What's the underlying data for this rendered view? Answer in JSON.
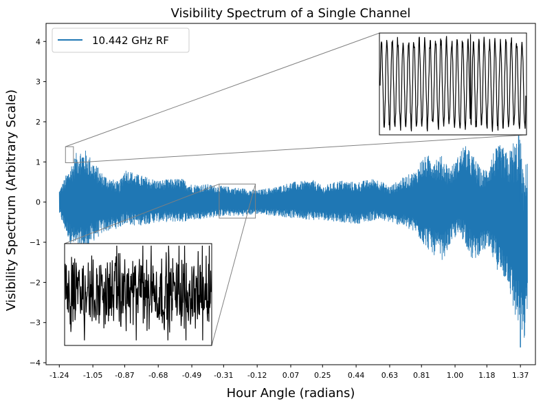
{
  "chart_data": {
    "type": "line",
    "title": "Visibility Spectrum of a Single Channel",
    "xlabel": "Hour Angle (radians)",
    "ylabel": "Visibility Spectrum (Arbitrary Scale)",
    "xlim": [
      -1.315,
      1.455
    ],
    "ylim": [
      -4.05,
      4.45
    ],
    "xticks": [
      -1.24,
      -1.05,
      -0.87,
      -0.68,
      -0.49,
      -0.31,
      -0.12,
      0.07,
      0.25,
      0.44,
      0.63,
      0.81,
      1.0,
      1.18,
      1.37
    ],
    "xtick_labels": [
      "-1.24",
      "-1.05",
      "-0.87",
      "-0.68",
      "-0.49",
      "-0.31",
      "-0.12",
      "0.07",
      "0.25",
      "0.44",
      "0.63",
      "0.81",
      "1.00",
      "1.18",
      "1.37"
    ],
    "yticks": [
      -4,
      -3,
      -2,
      -1,
      0,
      1,
      2,
      3,
      4
    ],
    "ytick_labels": [
      "−4",
      "−3",
      "−2",
      "−1",
      "0",
      "1",
      "2",
      "3",
      "4"
    ],
    "legend_position": "top-left",
    "grid": false,
    "series": [
      {
        "name": "10.442 GHz RF",
        "color": "#1f77b4",
        "x_range": [
          -1.24,
          1.41
        ],
        "envelope": {
          "x": [
            -1.24,
            -1.21,
            -1.17,
            -1.13,
            -1.09,
            -1.05,
            -1.0,
            -0.95,
            -0.9,
            -0.87,
            -0.8,
            -0.68,
            -0.55,
            -0.49,
            -0.4,
            -0.31,
            -0.2,
            -0.12,
            0.0,
            0.07,
            0.2,
            0.25,
            0.35,
            0.44,
            0.55,
            0.63,
            0.7,
            0.78,
            0.81,
            0.87,
            0.93,
            0.97,
            1.0,
            1.05,
            1.1,
            1.15,
            1.18,
            1.22,
            1.26,
            1.3,
            1.33,
            1.37,
            1.39,
            1.41
          ],
          "upper": [
            0.3,
            0.6,
            1.0,
            1.35,
            1.3,
            1.05,
            0.75,
            0.6,
            0.5,
            0.85,
            0.7,
            0.55,
            0.6,
            0.45,
            0.45,
            0.4,
            0.35,
            0.3,
            0.4,
            0.5,
            0.55,
            0.4,
            0.55,
            0.5,
            0.6,
            0.4,
            0.6,
            0.8,
            1.1,
            1.2,
            1.15,
            0.9,
            1.0,
            1.45,
            1.2,
            0.8,
            0.9,
            1.3,
            1.45,
            1.2,
            1.55,
            1.6,
            0.6,
            1.3
          ],
          "lower": [
            -0.3,
            -0.7,
            -1.1,
            -1.3,
            -1.25,
            -1.0,
            -0.8,
            -0.7,
            -0.65,
            -0.55,
            -0.6,
            -0.5,
            -0.5,
            -0.45,
            -0.4,
            -0.35,
            -0.35,
            -0.3,
            -0.35,
            -0.4,
            -0.45,
            -0.45,
            -0.5,
            -0.55,
            -0.45,
            -0.5,
            -0.6,
            -0.8,
            -1.0,
            -1.3,
            -1.45,
            -1.1,
            -0.9,
            -0.95,
            -1.5,
            -1.25,
            -1.2,
            -1.5,
            -1.9,
            -2.0,
            -2.8,
            -3.2,
            -3.6,
            -2.7
          ]
        },
        "extremes": {
          "max": {
            "x": 1.36,
            "y": 1.75
          },
          "min": {
            "x": 1.37,
            "y": -3.62
          }
        }
      }
    ],
    "insets": [
      {
        "position": "top-right",
        "zoom_x_range": [
          -1.205,
          -1.16
        ],
        "zoom_y_range": [
          0.98,
          1.38
        ],
        "line_color": "#000000",
        "connector_color": "#808080"
      },
      {
        "position": "bottom-left",
        "zoom_x_range": [
          -0.335,
          -0.13
        ],
        "zoom_y_range": [
          -0.4,
          0.45
        ],
        "line_color": "#000000",
        "connector_color": "#808080"
      }
    ]
  }
}
